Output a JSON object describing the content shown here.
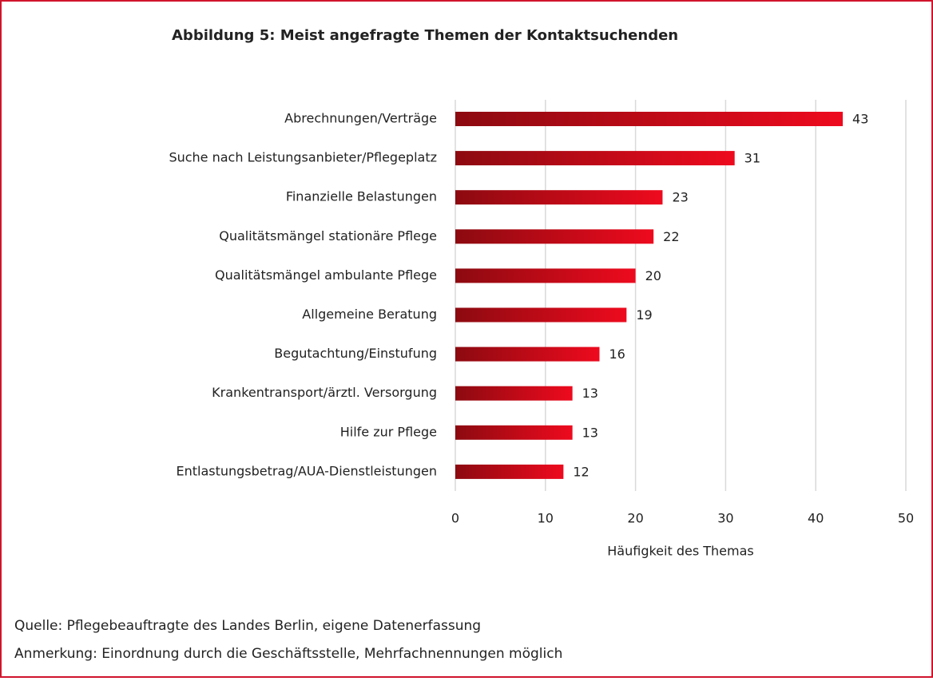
{
  "chart_data": {
    "type": "barh",
    "title": "Abbildung 5: Meist angefragte Themen der Kontaktsuchenden",
    "categories": [
      "Abrechnungen/Verträge",
      "Suche nach Leistungsanbieter/Pflegeplatz",
      "Finanzielle Belastungen",
      "Qualitätsmängel stationäre Pflege",
      "Qualitätsmängel ambulante Pflege",
      "Allgemeine Beratung",
      "Begutachtung/Einstufung",
      "Krankentransport/ärztl. Versorgung",
      "Hilfe zur Pflege",
      "Entlastungsbetrag/AUA-Dienstleistungen"
    ],
    "values": [
      43,
      31,
      23,
      22,
      20,
      19,
      16,
      13,
      13,
      12
    ],
    "colors": [
      "#8c0a10",
      "#ee0a1e"
    ],
    "xlabel": "Häufigkeit des Themas",
    "xlim": [
      0,
      50
    ],
    "xticks": [
      0,
      10,
      20,
      30,
      40,
      50
    ],
    "grid": true,
    "source": "Quelle: Pflegebeauftragte des Landes Berlin, eigene Datenerfassung",
    "note": "Anmerkung: Einordnung durch die Geschäftsstelle, Mehrfachnennungen möglich"
  }
}
